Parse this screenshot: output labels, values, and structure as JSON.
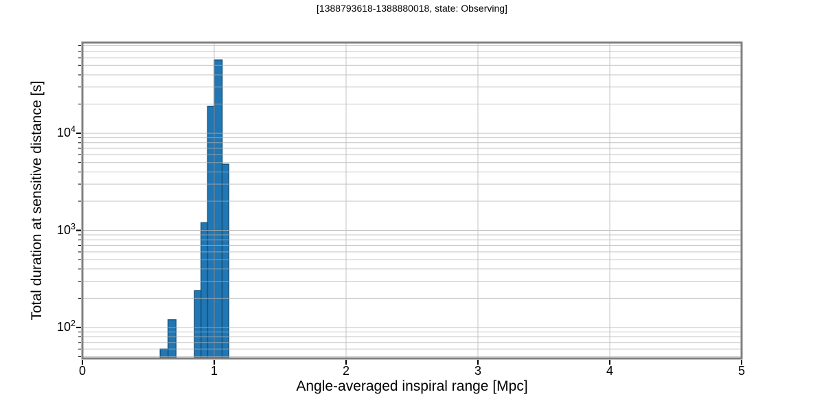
{
  "chart_data": {
    "type": "histogram",
    "title": "[1388793618-1388880018, state: Observing]",
    "xlabel": "Angle-averaged inspiral range [Mpc]",
    "ylabel": "Total duration at sensitive distance [s]",
    "xscale": "linear",
    "yscale": "log",
    "xlim": [
      0,
      5
    ],
    "ylim": [
      48,
      86000
    ],
    "xticks": [
      0,
      1,
      2,
      3,
      4,
      5
    ],
    "ytick_exponents": [
      2,
      3,
      4
    ],
    "grid": "both",
    "legend": "none",
    "bins": [
      {
        "x0": 0.59,
        "x1": 0.65,
        "y": 60
      },
      {
        "x0": 0.65,
        "x1": 0.71,
        "y": 120
      },
      {
        "x0": 0.85,
        "x1": 0.9,
        "y": 240
      },
      {
        "x0": 0.9,
        "x1": 0.95,
        "y": 1200
      },
      {
        "x0": 0.95,
        "x1": 1.0,
        "y": 19000
      },
      {
        "x0": 1.0,
        "x1": 1.06,
        "y": 57000
      },
      {
        "x0": 1.06,
        "x1": 1.11,
        "y": 4800
      }
    ],
    "colors": {
      "bar_fill": "#2077b4",
      "bar_edge": "#15537e",
      "grid": "#b0b0b0",
      "spine": "#808080",
      "tick": "#000000",
      "text": "#000000",
      "background": "#ffffff"
    }
  }
}
